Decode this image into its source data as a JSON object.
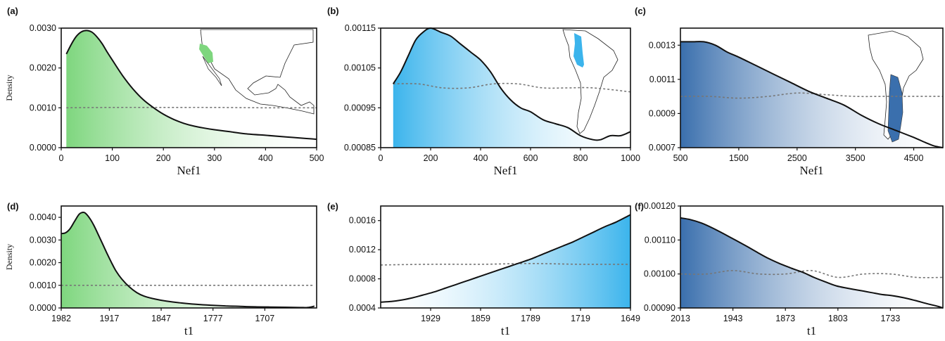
{
  "chart_data": [
    {
      "panel_label": "(a)",
      "type": "area",
      "ylabel": "Density",
      "xlabel": "Nef1",
      "xlim": [
        0,
        500
      ],
      "ylim": [
        0,
        0.003
      ],
      "x_ticks": [
        "0",
        "100",
        "200",
        "300",
        "400",
        "500"
      ],
      "y_ticks": [
        "0.0000",
        "0.0010",
        "0.0020",
        "0.0030"
      ],
      "color": "#7ed67e",
      "fill_direction": "left-to-right",
      "grid": false,
      "map": "Baja California / Mexico",
      "series": [
        {
          "role": "posterior",
          "x": [
            10,
            20,
            30,
            40,
            50,
            60,
            70,
            80,
            90,
            100,
            120,
            140,
            160,
            180,
            200,
            220,
            240,
            260,
            280,
            300,
            330,
            360,
            400,
            440,
            480,
            500
          ],
          "y": [
            0.00235,
            0.0026,
            0.0028,
            0.00291,
            0.00294,
            0.0029,
            0.00278,
            0.00261,
            0.0024,
            0.0022,
            0.00181,
            0.00148,
            0.00121,
            0.00101,
            0.00084,
            0.00071,
            0.00061,
            0.00054,
            0.00049,
            0.00045,
            0.0004,
            0.00035,
            0.00031,
            0.00027,
            0.00023,
            0.00021
          ]
        },
        {
          "role": "prior",
          "x": [
            10,
            100,
            200,
            300,
            400,
            500
          ],
          "y": [
            0.001,
            0.00101,
            0.00101,
            0.00101,
            0.001,
            0.001
          ]
        }
      ]
    },
    {
      "panel_label": "(b)",
      "type": "area",
      "xlabel": "Nef1",
      "xlim": [
        0,
        1000
      ],
      "ylim": [
        0.00085,
        0.00115
      ],
      "x_ticks": [
        "0",
        "200",
        "400",
        "600",
        "800",
        "1000"
      ],
      "y_ticks": [
        "0.00085",
        "0.00095",
        "0.00105",
        "0.00115"
      ],
      "color": "#3bb4ec",
      "fill_direction": "left-to-right",
      "grid": false,
      "map": "Andean South America",
      "series": [
        {
          "role": "posterior",
          "x": [
            50,
            80,
            110,
            140,
            170,
            200,
            240,
            280,
            320,
            360,
            400,
            440,
            480,
            520,
            560,
            600,
            650,
            700,
            750,
            800,
            850,
            880,
            920,
            960,
            1000
          ],
          "y": [
            0.00101,
            0.00104,
            0.00108,
            0.00112,
            0.00114,
            0.00115,
            0.00114,
            0.00113,
            0.00111,
            0.00109,
            0.00107,
            0.00104,
            0.001,
            0.00097,
            0.00095,
            0.00094,
            0.00092,
            0.00091,
            0.0009,
            0.00088,
            0.00087,
            0.00087,
            0.00088,
            0.00088,
            0.00089
          ]
        },
        {
          "role": "prior",
          "x": [
            50,
            150,
            250,
            350,
            450,
            550,
            650,
            750,
            850,
            1000
          ],
          "y": [
            0.00101,
            0.00101,
            0.001,
            0.001,
            0.00101,
            0.00101,
            0.001,
            0.001,
            0.001,
            0.00099
          ]
        }
      ]
    },
    {
      "panel_label": "(c)",
      "type": "area",
      "xlabel": "Nef1",
      "xlim": [
        500,
        5000
      ],
      "ylim": [
        0.0007,
        0.0014
      ],
      "x_ticks": [
        "500",
        "1500",
        "2500",
        "3500",
        "4500"
      ],
      "y_ticks": [
        "0.0007",
        "0.0009",
        "0.0011",
        "0.0013"
      ],
      "color": "#3a6fad",
      "fill_direction": "left-to-right",
      "grid": false,
      "map": "Southern South America",
      "series": [
        {
          "role": "posterior",
          "x": [
            500,
            700,
            900,
            1100,
            1300,
            1500,
            1800,
            2100,
            2400,
            2700,
            3000,
            3300,
            3600,
            3900,
            4200,
            4500,
            4700,
            4850,
            5000
          ],
          "y": [
            0.00132,
            0.00132,
            0.00132,
            0.0013,
            0.00126,
            0.00123,
            0.00118,
            0.00113,
            0.00108,
            0.00103,
            0.00099,
            0.00095,
            0.00089,
            0.00084,
            0.0008,
            0.00076,
            0.00073,
            0.00071,
            0.0007
          ]
        },
        {
          "role": "prior",
          "x": [
            500,
            1000,
            1500,
            2000,
            2500,
            3000,
            3500,
            4000,
            4500,
            5000
          ],
          "y": [
            0.001,
            0.001,
            0.00099,
            0.001,
            0.00102,
            0.00101,
            0.001,
            0.001,
            0.001,
            0.001
          ]
        }
      ]
    },
    {
      "panel_label": "(d)",
      "type": "area",
      "ylabel": "Density",
      "xlabel": "t1",
      "xlim": [
        1982,
        1637
      ],
      "ylim": [
        0,
        0.0045
      ],
      "x_ticks": [
        "1982",
        "1917",
        "1847",
        "1777",
        "1707"
      ],
      "y_ticks": [
        "0.0000",
        "0.0010",
        "0.0020",
        "0.0030",
        "0.0040"
      ],
      "color": "#7ed67e",
      "fill_direction": "left-to-right",
      "grid": false,
      "series": [
        {
          "role": "posterior",
          "x": [
            1982,
            1976,
            1970,
            1964,
            1958,
            1954,
            1950,
            1944,
            1938,
            1932,
            1926,
            1920,
            1914,
            1908,
            1900,
            1890,
            1880,
            1870,
            1855,
            1840,
            1820,
            1800,
            1780,
            1760,
            1740,
            1720,
            1700,
            1680,
            1660,
            1650,
            1645,
            1640
          ],
          "y": [
            0.00328,
            0.00332,
            0.0035,
            0.00382,
            0.00413,
            0.00421,
            0.0042,
            0.00398,
            0.00365,
            0.00324,
            0.00282,
            0.0024,
            0.002,
            0.00163,
            0.00127,
            0.00093,
            0.00068,
            0.00052,
            0.00039,
            0.0003,
            0.00022,
            0.00016,
            0.00012,
            9e-05,
            7e-05,
            5e-05,
            4e-05,
            3e-05,
            2e-05,
            2e-05,
            4e-05,
            8e-05
          ]
        },
        {
          "role": "prior",
          "x": [
            1982,
            1640
          ],
          "y": [
            0.001,
            0.001
          ]
        }
      ]
    },
    {
      "panel_label": "(e)",
      "type": "area",
      "xlabel": "t1",
      "xlim": [
        1999,
        1649
      ],
      "ylim": [
        0.0004,
        0.0018
      ],
      "x_ticks": [
        "1929",
        "1859",
        "1789",
        "1719",
        "1649"
      ],
      "y_ticks": [
        "0.0004",
        "0.0008",
        "0.0012",
        "0.0016"
      ],
      "color": "#3bb4ec",
      "fill_direction": "right-to-left",
      "grid": false,
      "series": [
        {
          "role": "posterior",
          "x": [
            1999,
            1984,
            1969,
            1954,
            1939,
            1924,
            1909,
            1894,
            1879,
            1864,
            1849,
            1834,
            1819,
            1804,
            1789,
            1774,
            1759,
            1744,
            1729,
            1714,
            1699,
            1684,
            1669,
            1649
          ],
          "y": [
            0.00048,
            0.00049,
            0.00051,
            0.00054,
            0.00058,
            0.00062,
            0.00067,
            0.00072,
            0.00077,
            0.00082,
            0.00087,
            0.00092,
            0.00097,
            0.00102,
            0.00107,
            0.00113,
            0.00119,
            0.00125,
            0.00131,
            0.00138,
            0.00145,
            0.00152,
            0.00158,
            0.00168
          ]
        },
        {
          "role": "prior",
          "x": [
            1999,
            1929,
            1859,
            1789,
            1719,
            1649
          ],
          "y": [
            0.00099,
            0.001,
            0.001,
            0.00101,
            0.001,
            0.001
          ]
        }
      ]
    },
    {
      "panel_label": "(f)",
      "type": "area",
      "xlabel": "t1",
      "xlim": [
        2013,
        1663
      ],
      "ylim": [
        0.0009,
        0.0012
      ],
      "x_ticks": [
        "2013",
        "1943",
        "1873",
        "1803",
        "1733"
      ],
      "y_ticks": [
        "0.00090",
        "0.00100",
        "0.00110",
        "0.00120"
      ],
      "color": "#3a6fad",
      "fill_direction": "left-to-right",
      "grid": false,
      "series": [
        {
          "role": "posterior",
          "x": [
            2013,
            2000,
            1985,
            1970,
            1955,
            1940,
            1925,
            1910,
            1895,
            1880,
            1865,
            1850,
            1835,
            1820,
            1805,
            1790,
            1775,
            1760,
            1745,
            1730,
            1715,
            1700,
            1685,
            1670,
            1663
          ],
          "y": [
            0.001165,
            0.00116,
            0.00115,
            0.001135,
            0.001118,
            0.0011,
            0.001082,
            0.001063,
            0.001045,
            0.00103,
            0.001017,
            0.001005,
            0.00099,
            0.000977,
            0.000965,
            0.000958,
            0.000952,
            0.000946,
            0.00094,
            0.000936,
            0.00093,
            0.000922,
            0.000913,
            0.000905,
            0.0009
          ]
        },
        {
          "role": "prior",
          "x": [
            2013,
            1978,
            1943,
            1908,
            1873,
            1838,
            1803,
            1768,
            1733,
            1698,
            1663
          ],
          "y": [
            0.001,
            0.001,
            0.00101,
            0.001,
            0.001,
            0.00101,
            0.00099,
            0.001,
            0.001,
            0.00099,
            0.00099
          ]
        }
      ]
    }
  ]
}
